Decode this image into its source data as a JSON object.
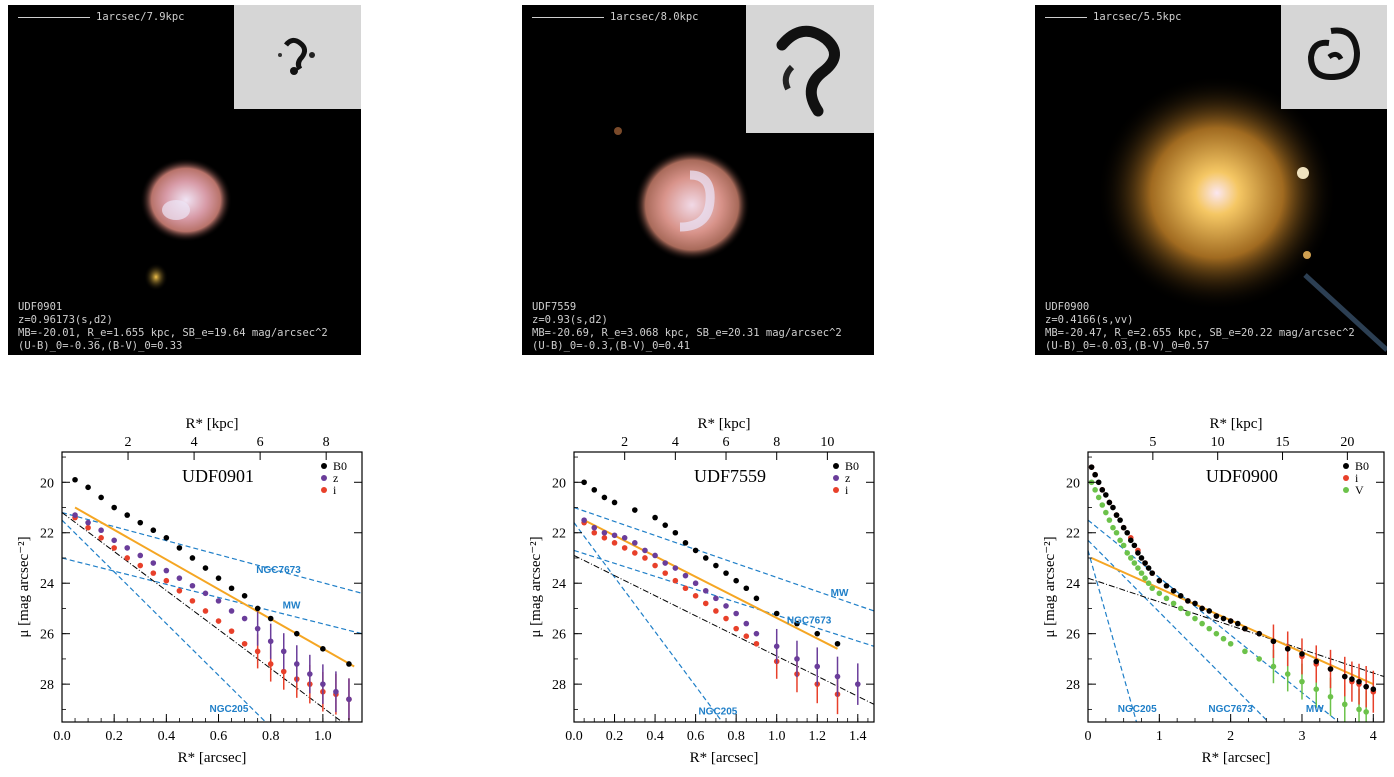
{
  "galleries": [
    {
      "scale": "1arcsec/7.9kpc",
      "info": [
        "UDF0901",
        "z=0.96173(s,d2)",
        "MB=-20.01, R_e=1.655 kpc, SB_e=19.64 mag/arcsec^2",
        "(U-B)_0=-0.36,(B-V)_0=0.33"
      ]
    },
    {
      "scale": "1arcsec/8.0kpc",
      "info": [
        "UDF7559",
        "z=0.93(s,d2)",
        "MB=-20.69, R_e=3.068 kpc, SB_e=20.31 mag/arcsec^2",
        "(U-B)_0=-0.3,(B-V)_0=0.41"
      ]
    },
    {
      "scale": "1arcsec/5.5kpc",
      "info": [
        "UDF0900",
        "z=0.4166(s,vv)",
        "MB=-20.47, R_e=2.655 kpc, SB_e=20.22 mag/arcsec^2",
        "(U-B)_0=-0.03,(B-V)_0=0.57"
      ]
    }
  ],
  "colors": {
    "B0": "#000000",
    "z": "#6a3d9a",
    "i": "#e8402a",
    "V": "#6cc24a",
    "fit": "#f5a623",
    "ref": "#1f7fc8"
  },
  "chart_data": [
    {
      "type": "scatter",
      "title": "UDF0901",
      "xlabel": "R* [arcsec]",
      "ylabel": "μ [mag arcsec⁻²]",
      "top_xlabel": "R* [kpc]",
      "xlim": [
        0,
        1.15
      ],
      "ylim": [
        29.5,
        18.8
      ],
      "xticks": [
        "0.0",
        "0.2",
        "0.4",
        "0.6",
        "0.8",
        "1.0"
      ],
      "xtick_values": [
        0,
        0.2,
        0.4,
        0.6,
        0.8,
        1.0
      ],
      "yticks": [
        "20",
        "22",
        "24",
        "26",
        "28"
      ],
      "ytick_values": [
        20,
        22,
        24,
        26,
        28
      ],
      "top_ticks": [
        "2",
        "4",
        "6",
        "8"
      ],
      "top_tick_values": [
        2,
        4,
        6,
        8
      ],
      "kpc_per_arcsec": 7.9,
      "legend": [
        "B0",
        "z",
        "i"
      ],
      "series": [
        {
          "name": "B0",
          "color_key": "B0",
          "x": [
            0.05,
            0.1,
            0.15,
            0.2,
            0.25,
            0.3,
            0.35,
            0.4,
            0.45,
            0.5,
            0.55,
            0.6,
            0.65,
            0.7,
            0.75,
            0.8,
            0.9,
            1.0,
            1.1
          ],
          "y": [
            19.9,
            20.2,
            20.6,
            21.0,
            21.3,
            21.6,
            21.9,
            22.2,
            22.6,
            23.0,
            23.4,
            23.8,
            24.2,
            24.5,
            25.0,
            25.4,
            26.0,
            26.6,
            27.2
          ]
        },
        {
          "name": "z",
          "color_key": "z",
          "x": [
            0.05,
            0.1,
            0.15,
            0.2,
            0.25,
            0.3,
            0.35,
            0.4,
            0.45,
            0.5,
            0.55,
            0.6,
            0.65,
            0.7,
            0.75,
            0.8,
            0.85,
            0.9,
            0.95,
            1.0,
            1.05,
            1.1
          ],
          "y": [
            21.3,
            21.6,
            21.9,
            22.3,
            22.6,
            22.9,
            23.2,
            23.5,
            23.8,
            24.1,
            24.4,
            24.7,
            25.1,
            25.4,
            25.8,
            26.3,
            26.7,
            27.2,
            27.6,
            28.0,
            28.3,
            28.6
          ]
        },
        {
          "name": "i",
          "color_key": "i",
          "x": [
            0.05,
            0.1,
            0.15,
            0.2,
            0.25,
            0.3,
            0.35,
            0.4,
            0.45,
            0.5,
            0.55,
            0.6,
            0.65,
            0.7,
            0.75,
            0.8,
            0.85,
            0.9,
            0.95,
            1.0,
            1.05,
            1.1
          ],
          "y": [
            21.4,
            21.8,
            22.2,
            22.6,
            23.0,
            23.3,
            23.6,
            23.9,
            24.3,
            24.7,
            25.1,
            25.5,
            25.9,
            26.4,
            26.7,
            27.2,
            27.5,
            27.8,
            28.0,
            28.3,
            28.4,
            28.6
          ]
        }
      ],
      "fit": {
        "x": [
          0.05,
          1.12
        ],
        "y": [
          21.0,
          27.3
        ]
      },
      "total": {
        "x": [
          0.0,
          1.1
        ],
        "y": [
          21.2,
          29.7
        ]
      },
      "refs": [
        {
          "label": "NGC7673",
          "x": [
            0.0,
            1.15
          ],
          "y": [
            21.2,
            24.4
          ],
          "lx": 0.83,
          "ly": 23.6
        },
        {
          "label": "MW",
          "x": [
            0.0,
            1.15
          ],
          "y": [
            23.0,
            26.0
          ],
          "lx": 0.88,
          "ly": 25.0
        },
        {
          "label": "NGC205",
          "x": [
            0.0,
            0.8
          ],
          "y": [
            21.5,
            29.7
          ],
          "lx": 0.64,
          "ly": 29.1
        }
      ]
    },
    {
      "type": "scatter",
      "title": "UDF7559",
      "xlabel": "R* [arcsec]",
      "ylabel": "μ [mag arcsec⁻²]",
      "top_xlabel": "R* [kpc]",
      "xlim": [
        0,
        1.48
      ],
      "ylim": [
        29.5,
        18.8
      ],
      "xticks": [
        "0.0",
        "0.2",
        "0.4",
        "0.6",
        "0.8",
        "1.0",
        "1.2",
        "1.4"
      ],
      "xtick_values": [
        0,
        0.2,
        0.4,
        0.6,
        0.8,
        1.0,
        1.2,
        1.4
      ],
      "yticks": [
        "20",
        "22",
        "24",
        "26",
        "28"
      ],
      "ytick_values": [
        20,
        22,
        24,
        26,
        28
      ],
      "top_ticks": [
        "2",
        "4",
        "6",
        "8",
        "10"
      ],
      "top_tick_values": [
        2,
        4,
        6,
        8,
        10
      ],
      "kpc_per_arcsec": 8.0,
      "legend": [
        "B0",
        "z",
        "i"
      ],
      "series": [
        {
          "name": "B0",
          "color_key": "B0",
          "x": [
            0.05,
            0.1,
            0.15,
            0.2,
            0.3,
            0.4,
            0.45,
            0.5,
            0.55,
            0.6,
            0.65,
            0.7,
            0.75,
            0.8,
            0.85,
            0.9,
            1.0,
            1.1,
            1.2,
            1.3
          ],
          "y": [
            20.0,
            20.3,
            20.6,
            20.8,
            21.1,
            21.4,
            21.7,
            22.0,
            22.4,
            22.7,
            23.0,
            23.3,
            23.6,
            23.9,
            24.2,
            24.6,
            25.2,
            25.6,
            26.0,
            26.4
          ]
        },
        {
          "name": "z",
          "color_key": "z",
          "x": [
            0.05,
            0.1,
            0.15,
            0.2,
            0.25,
            0.3,
            0.35,
            0.4,
            0.45,
            0.5,
            0.55,
            0.6,
            0.65,
            0.7,
            0.75,
            0.8,
            0.85,
            0.9,
            1.0,
            1.1,
            1.2,
            1.3,
            1.4
          ],
          "y": [
            21.5,
            21.8,
            22.0,
            22.1,
            22.2,
            22.4,
            22.7,
            22.9,
            23.2,
            23.4,
            23.7,
            24.0,
            24.3,
            24.6,
            24.9,
            25.2,
            25.6,
            26.0,
            26.5,
            27.0,
            27.3,
            27.7,
            28.0
          ]
        },
        {
          "name": "i",
          "color_key": "i",
          "x": [
            0.05,
            0.1,
            0.15,
            0.2,
            0.25,
            0.3,
            0.35,
            0.4,
            0.45,
            0.5,
            0.55,
            0.6,
            0.65,
            0.7,
            0.75,
            0.8,
            0.85,
            0.9,
            1.0,
            1.1,
            1.2,
            1.3
          ],
          "y": [
            21.6,
            22.0,
            22.2,
            22.4,
            22.6,
            22.8,
            23.0,
            23.3,
            23.6,
            23.9,
            24.2,
            24.5,
            24.8,
            25.1,
            25.4,
            25.8,
            26.1,
            26.4,
            27.1,
            27.6,
            28.0,
            28.4
          ]
        }
      ],
      "fit": {
        "x": [
          0.05,
          1.3
        ],
        "y": [
          21.5,
          26.6
        ]
      },
      "total": {
        "x": [
          0.0,
          1.48
        ],
        "y": [
          22.9,
          28.8
        ]
      },
      "refs": [
        {
          "label": "MW",
          "x": [
            0.0,
            1.48
          ],
          "y": [
            21.0,
            25.1
          ],
          "lx": 1.31,
          "ly": 24.5
        },
        {
          "label": "NGC7673",
          "x": [
            0.0,
            1.48
          ],
          "y": [
            22.7,
            26.5
          ],
          "lx": 1.16,
          "ly": 25.6
        },
        {
          "label": "NGC205",
          "x": [
            0.0,
            0.75
          ],
          "y": [
            21.6,
            29.7
          ],
          "lx": 0.71,
          "ly": 29.2
        }
      ]
    },
    {
      "type": "scatter",
      "title": "UDF0900",
      "xlabel": "R* [arcsec]",
      "ylabel": "μ [mag arcsec⁻²]",
      "top_xlabel": "R* [kpc]",
      "xlim": [
        0,
        4.15
      ],
      "ylim": [
        29.5,
        18.8
      ],
      "xticks": [
        "0",
        "1",
        "2",
        "3",
        "4"
      ],
      "xtick_values": [
        0,
        1,
        2,
        3,
        4
      ],
      "yticks": [
        "20",
        "22",
        "24",
        "26",
        "28"
      ],
      "ytick_values": [
        20,
        22,
        24,
        26,
        28
      ],
      "top_ticks": [
        "5",
        "10",
        "15",
        "20"
      ],
      "top_tick_values": [
        5,
        10,
        15,
        20
      ],
      "kpc_per_arcsec": 5.5,
      "legend": [
        "B0",
        "i",
        "V"
      ],
      "series": [
        {
          "name": "B0",
          "color_key": "B0",
          "x": [
            0.05,
            0.1,
            0.15,
            0.2,
            0.25,
            0.3,
            0.35,
            0.4,
            0.45,
            0.5,
            0.55,
            0.6,
            0.65,
            0.7,
            0.75,
            0.8,
            0.85,
            0.9,
            1.0,
            1.1,
            1.2,
            1.3,
            1.4,
            1.5,
            1.6,
            1.7,
            1.8,
            1.9,
            2.0,
            2.1,
            2.2,
            2.4,
            2.6,
            2.8,
            3.0,
            3.2,
            3.4,
            3.6,
            3.7,
            3.8,
            3.9,
            4.0
          ],
          "y": [
            19.4,
            19.7,
            20.0,
            20.3,
            20.5,
            20.8,
            21.0,
            21.3,
            21.5,
            21.8,
            22.0,
            22.3,
            22.5,
            22.8,
            23.0,
            23.2,
            23.4,
            23.6,
            23.9,
            24.1,
            24.3,
            24.5,
            24.7,
            24.8,
            25.0,
            25.1,
            25.3,
            25.4,
            25.5,
            25.6,
            25.8,
            26.0,
            26.3,
            26.6,
            26.8,
            27.1,
            27.4,
            27.7,
            27.8,
            27.9,
            28.1,
            28.2
          ]
        },
        {
          "name": "i",
          "color_key": "i",
          "x": [
            0.05,
            0.1,
            0.2,
            0.3,
            0.4,
            0.5,
            0.6,
            0.7,
            0.8,
            0.9,
            1.0,
            1.2,
            1.4,
            1.6,
            1.8,
            2.0,
            2.2,
            2.4,
            2.6,
            2.8,
            3.0,
            3.2,
            3.4,
            3.6,
            3.7,
            3.8,
            3.9,
            4.0
          ],
          "y": [
            19.4,
            19.7,
            20.3,
            20.8,
            21.3,
            21.8,
            22.2,
            22.7,
            23.2,
            23.6,
            23.9,
            24.3,
            24.7,
            25.0,
            25.3,
            25.5,
            25.8,
            26.0,
            26.3,
            26.6,
            26.9,
            27.2,
            27.4,
            27.7,
            27.9,
            28.0,
            28.1,
            28.3
          ]
        },
        {
          "name": "V",
          "color_key": "V",
          "x": [
            0.05,
            0.1,
            0.15,
            0.2,
            0.25,
            0.3,
            0.35,
            0.4,
            0.45,
            0.5,
            0.55,
            0.6,
            0.65,
            0.7,
            0.75,
            0.8,
            0.85,
            0.9,
            1.0,
            1.1,
            1.2,
            1.3,
            1.4,
            1.5,
            1.6,
            1.7,
            1.8,
            1.9,
            2.0,
            2.2,
            2.4,
            2.6,
            2.8,
            3.0,
            3.2,
            3.4,
            3.6,
            3.8,
            3.9
          ],
          "y": [
            20.0,
            20.3,
            20.6,
            20.9,
            21.2,
            21.5,
            21.8,
            22.0,
            22.3,
            22.5,
            22.8,
            23.0,
            23.2,
            23.4,
            23.6,
            23.8,
            24.0,
            24.2,
            24.4,
            24.6,
            24.8,
            25.0,
            25.2,
            25.4,
            25.6,
            25.8,
            26.0,
            26.2,
            26.4,
            26.7,
            27.0,
            27.3,
            27.6,
            27.9,
            28.2,
            28.5,
            28.8,
            29.0,
            29.1
          ]
        }
      ],
      "fit": {
        "x": [
          0.05,
          4.0
        ],
        "y": [
          23.0,
          28.0
        ]
      },
      "total": {
        "x": [
          0.0,
          4.15
        ],
        "y": [
          23.8,
          27.7
        ]
      },
      "refs": [
        {
          "label": "MW",
          "x": [
            0.0,
            3.6
          ],
          "y": [
            21.5,
            29.7
          ],
          "lx": 3.18,
          "ly": 29.1
        },
        {
          "label": "NGC7673",
          "x": [
            0.0,
            2.6
          ],
          "y": [
            22.3,
            29.7
          ],
          "lx": 2.0,
          "ly": 29.1
        },
        {
          "label": "NGC205",
          "x": [
            0.0,
            0.7
          ],
          "y": [
            22.7,
            29.7
          ],
          "lx": 0.69,
          "ly": 29.1
        }
      ]
    }
  ]
}
